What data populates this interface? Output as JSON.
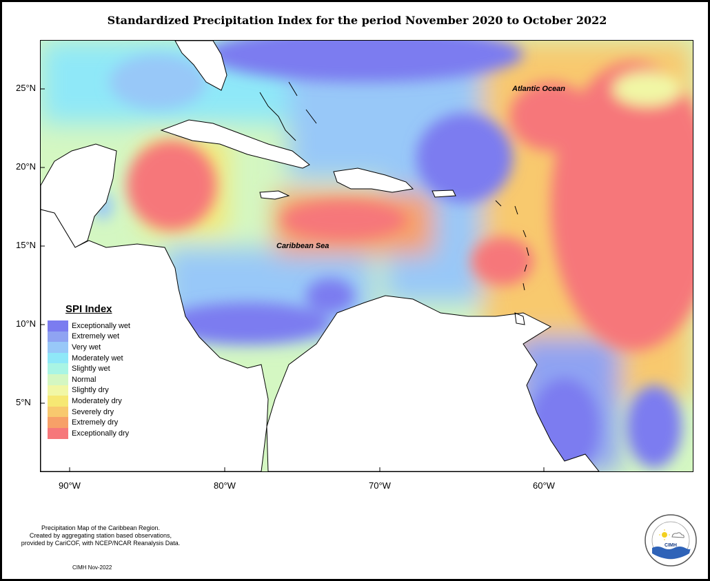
{
  "title": "Standardized Precipitation Index for the period November 2020 to October 2022",
  "latitude_labels": [
    "25°N",
    "20°N",
    "15°N",
    "10°N",
    "5°N"
  ],
  "longitude_labels": [
    "90°W",
    "80°W",
    "70°W",
    "60°W"
  ],
  "sea_labels": {
    "atlantic": "Atlantic Ocean",
    "caribbean": "Caribbean Sea"
  },
  "legend": {
    "title": "SPI Index",
    "items": [
      {
        "label": "Exceptionally wet",
        "color": "#7b7cf0"
      },
      {
        "label": "Extremely wet",
        "color": "#8fa3f2"
      },
      {
        "label": "Very wet",
        "color": "#98c8f8"
      },
      {
        "label": "Moderately wet",
        "color": "#8fe8f8"
      },
      {
        "label": "Slightly wet",
        "color": "#a9f5e4"
      },
      {
        "label": "Normal",
        "color": "#d4f7c2"
      },
      {
        "label": "Slightly dry",
        "color": "#f1f7a5"
      },
      {
        "label": "Moderately dry",
        "color": "#f6e873"
      },
      {
        "label": "Severely dry",
        "color": "#f8c96e"
      },
      {
        "label": "Extremely dry",
        "color": "#f7a068"
      },
      {
        "label": "Exceptionally dry",
        "color": "#f6777a"
      }
    ]
  },
  "note": {
    "line1": "Precipitation Map of the Caribbean Region.",
    "line2": "Created by aggregating station based observations,",
    "line3": "provided by CariCOF, with NCEP/NCAR Reanalysis Data."
  },
  "credit": "CIMH Nov-2022",
  "logo": {
    "text": "CIMH"
  }
}
